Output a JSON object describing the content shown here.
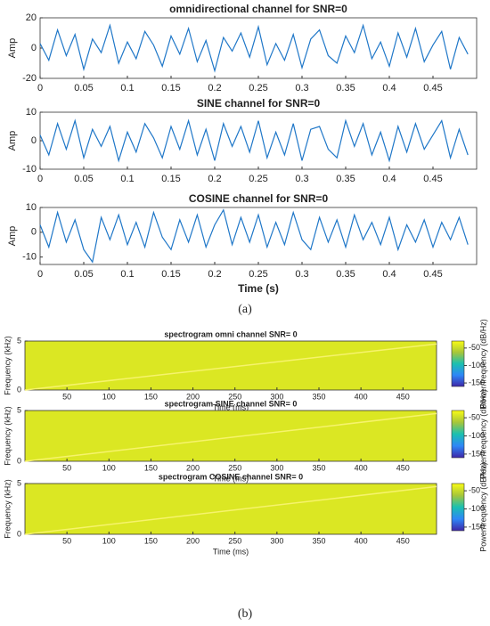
{
  "captions": [
    "(a)",
    "(b)"
  ],
  "chart_data": [
    {
      "type": "line",
      "title": "omnidirectional channel for SNR=0",
      "ylabel": "Amp",
      "color": "#1f77c8",
      "xlim": [
        0,
        0.5
      ],
      "xticks": [
        0,
        0.05,
        0.1,
        0.15,
        0.2,
        0.25,
        0.3,
        0.35,
        0.4,
        0.45
      ],
      "ylim": [
        -20,
        20
      ],
      "yticks": [
        -20,
        0,
        20
      ],
      "x": [
        0,
        0.01,
        0.02,
        0.03,
        0.04,
        0.05,
        0.06,
        0.07,
        0.08,
        0.09,
        0.1,
        0.11,
        0.12,
        0.13,
        0.14,
        0.15,
        0.16,
        0.17,
        0.18,
        0.19,
        0.2,
        0.21,
        0.22,
        0.23,
        0.24,
        0.25,
        0.26,
        0.27,
        0.28,
        0.29,
        0.3,
        0.31,
        0.32,
        0.33,
        0.34,
        0.35,
        0.36,
        0.37,
        0.38,
        0.39,
        0.4,
        0.41,
        0.42,
        0.43,
        0.44,
        0.45,
        0.46,
        0.47,
        0.48,
        0.49
      ],
      "values": [
        3,
        -8,
        12,
        -5,
        9,
        -14,
        6,
        -3,
        15,
        -10,
        4,
        -7,
        11,
        2,
        -12,
        8,
        -4,
        13,
        -9,
        5,
        -15,
        7,
        -2,
        10,
        -6,
        14,
        -11,
        3,
        -8,
        9,
        -13,
        6,
        12,
        -5,
        -10,
        8,
        -3,
        15,
        -7,
        4,
        -12,
        10,
        -6,
        13,
        -9,
        2,
        11,
        -14,
        7,
        -4
      ]
    },
    {
      "type": "line",
      "title": "SINE channel for SNR=0",
      "ylabel": "Amp",
      "color": "#1f77c8",
      "xlim": [
        0,
        0.5
      ],
      "xticks": [
        0,
        0.05,
        0.1,
        0.15,
        0.2,
        0.25,
        0.3,
        0.35,
        0.4,
        0.45
      ],
      "ylim": [
        -10,
        10
      ],
      "yticks": [
        -10,
        0,
        10
      ],
      "x": [
        0,
        0.01,
        0.02,
        0.03,
        0.04,
        0.05,
        0.06,
        0.07,
        0.08,
        0.09,
        0.1,
        0.11,
        0.12,
        0.13,
        0.14,
        0.15,
        0.16,
        0.17,
        0.18,
        0.19,
        0.2,
        0.21,
        0.22,
        0.23,
        0.24,
        0.25,
        0.26,
        0.27,
        0.28,
        0.29,
        0.3,
        0.31,
        0.32,
        0.33,
        0.34,
        0.35,
        0.36,
        0.37,
        0.38,
        0.39,
        0.4,
        0.41,
        0.42,
        0.43,
        0.44,
        0.45,
        0.46,
        0.47,
        0.48,
        0.49
      ],
      "values": [
        2,
        -5,
        6,
        -3,
        7,
        -6,
        4,
        -2,
        5,
        -7,
        3,
        -4,
        6,
        1,
        -6,
        5,
        -3,
        7,
        -5,
        4,
        -7,
        6,
        -2,
        5,
        -4,
        7,
        -6,
        3,
        -5,
        6,
        -7,
        4,
        5,
        -3,
        -6,
        7,
        -2,
        6,
        -5,
        3,
        -7,
        5,
        -4,
        6,
        -3,
        2,
        7,
        -6,
        4,
        -5
      ]
    },
    {
      "type": "line",
      "title": "COSINE channel for SNR=0",
      "ylabel": "Amp",
      "xlabel": "Time (s)",
      "color": "#1f77c8",
      "xlim": [
        0,
        0.5
      ],
      "xticks": [
        0,
        0.05,
        0.1,
        0.15,
        0.2,
        0.25,
        0.3,
        0.35,
        0.4,
        0.45
      ],
      "ylim": [
        -13,
        10
      ],
      "yticks": [
        -10,
        0,
        10
      ],
      "x": [
        0,
        0.01,
        0.02,
        0.03,
        0.04,
        0.05,
        0.06,
        0.07,
        0.08,
        0.09,
        0.1,
        0.11,
        0.12,
        0.13,
        0.14,
        0.15,
        0.16,
        0.17,
        0.18,
        0.19,
        0.2,
        0.21,
        0.22,
        0.23,
        0.24,
        0.25,
        0.26,
        0.27,
        0.28,
        0.29,
        0.3,
        0.31,
        0.32,
        0.33,
        0.34,
        0.35,
        0.36,
        0.37,
        0.38,
        0.39,
        0.4,
        0.41,
        0.42,
        0.43,
        0.44,
        0.45,
        0.46,
        0.47,
        0.48,
        0.49
      ],
      "values": [
        3,
        -6,
        8,
        -4,
        5,
        -7,
        -12,
        6,
        -3,
        7,
        -5,
        4,
        -6,
        8,
        -2,
        -7,
        5,
        -4,
        7,
        -6,
        3,
        9,
        -5,
        6,
        -4,
        7,
        -6,
        4,
        -5,
        8,
        -3,
        -7,
        6,
        -4,
        5,
        -6,
        7,
        -3,
        4,
        -5,
        6,
        -7,
        3,
        -4,
        5,
        -6,
        4,
        -3,
        6,
        -5
      ]
    },
    {
      "type": "heatmap",
      "title": "spectrogram omni channel SNR= 0",
      "xlabel": "Time (ms)",
      "ylabel": "Frequency (kHz)",
      "colorbar_label": "Power/frequency (dB/Hz)",
      "clim": [
        -160,
        -30
      ],
      "cticks": [
        -50,
        -100,
        -150
      ],
      "level": -42,
      "xlim": [
        0,
        490
      ],
      "xticks": [
        50,
        100,
        150,
        200,
        250,
        300,
        350,
        400,
        450
      ],
      "ylim": [
        0,
        5
      ],
      "yticks": [
        0,
        5
      ],
      "color": "#f6f36c",
      "x": [
        0,
        490
      ],
      "values": [
        0,
        4.7
      ]
    },
    {
      "type": "heatmap",
      "title": "spectrogram SINE channel SNR= 0",
      "xlabel": "Time (ms)",
      "ylabel": "Frequency (kHz)",
      "colorbar_label": "Power/frequency (dB/Hz)",
      "clim": [
        -160,
        -30
      ],
      "cticks": [
        -50,
        -100,
        -150
      ],
      "level": -42,
      "xlim": [
        0,
        490
      ],
      "xticks": [
        50,
        100,
        150,
        200,
        250,
        300,
        350,
        400,
        450
      ],
      "ylim": [
        0,
        5
      ],
      "yticks": [
        0,
        5
      ],
      "color": "#f6f36c",
      "x": [
        0,
        490
      ],
      "values": [
        0,
        4.7
      ]
    },
    {
      "type": "heatmap",
      "title": "spectrogram COSINE channel SNR= 0",
      "xlabel": "Time (ms)",
      "ylabel": "Frequency (kHz)",
      "colorbar_label": "Power/frequency (dB/Hz)",
      "clim": [
        -160,
        -30
      ],
      "cticks": [
        -50,
        -100,
        -150
      ],
      "level": -42,
      "xlim": [
        0,
        490
      ],
      "xticks": [
        50,
        100,
        150,
        200,
        250,
        300,
        350,
        400,
        450
      ],
      "ylim": [
        0,
        5
      ],
      "yticks": [
        0,
        5
      ],
      "color": "#f6f36c",
      "x": [
        0,
        490
      ],
      "values": [
        0,
        4.7
      ]
    }
  ]
}
